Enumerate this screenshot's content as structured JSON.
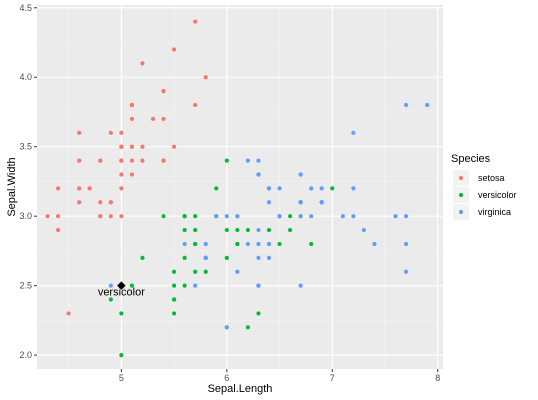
{
  "chart_data": {
    "type": "scatter",
    "xlabel": "Sepal.Length",
    "ylabel": "Sepal.Width",
    "xlim": [
      4.2,
      8.05
    ],
    "ylim": [
      1.9,
      4.52
    ],
    "x_ticks": [
      5,
      6,
      7,
      8
    ],
    "y_ticks": [
      2.0,
      2.5,
      3.0,
      3.5,
      4.0,
      4.5
    ],
    "y_tick_labels": [
      "2.0",
      "2.5",
      "3.0",
      "3.5",
      "4.0",
      "4.5"
    ],
    "grid": true,
    "background": "#ebebeb",
    "legend": {
      "title": "Species",
      "position": "right"
    },
    "series": [
      {
        "name": "setosa",
        "color": "#f8766d",
        "points": [
          [
            5.1,
            3.5
          ],
          [
            4.9,
            3.0
          ],
          [
            4.7,
            3.2
          ],
          [
            4.6,
            3.1
          ],
          [
            5.0,
            3.6
          ],
          [
            5.4,
            3.9
          ],
          [
            4.6,
            3.4
          ],
          [
            5.0,
            3.4
          ],
          [
            4.4,
            2.9
          ],
          [
            4.9,
            3.1
          ],
          [
            5.4,
            3.7
          ],
          [
            4.8,
            3.4
          ],
          [
            4.8,
            3.0
          ],
          [
            4.3,
            3.0
          ],
          [
            5.8,
            4.0
          ],
          [
            5.7,
            4.4
          ],
          [
            5.4,
            3.9
          ],
          [
            5.1,
            3.5
          ],
          [
            5.7,
            3.8
          ],
          [
            5.1,
            3.8
          ],
          [
            5.4,
            3.4
          ],
          [
            5.1,
            3.7
          ],
          [
            4.6,
            3.6
          ],
          [
            5.1,
            3.3
          ],
          [
            4.8,
            3.4
          ],
          [
            5.0,
            3.0
          ],
          [
            5.0,
            3.4
          ],
          [
            5.2,
            3.5
          ],
          [
            5.2,
            3.4
          ],
          [
            4.7,
            3.2
          ],
          [
            4.8,
            3.1
          ],
          [
            5.4,
            3.4
          ],
          [
            5.2,
            4.1
          ],
          [
            5.5,
            4.2
          ],
          [
            4.9,
            3.1
          ],
          [
            5.0,
            3.2
          ],
          [
            5.5,
            3.5
          ],
          [
            4.9,
            3.6
          ],
          [
            4.4,
            3.0
          ],
          [
            5.1,
            3.4
          ],
          [
            5.0,
            3.5
          ],
          [
            4.5,
            2.3
          ],
          [
            4.4,
            3.2
          ],
          [
            5.0,
            3.5
          ],
          [
            5.1,
            3.8
          ],
          [
            4.8,
            3.0
          ],
          [
            5.1,
            3.8
          ],
          [
            4.6,
            3.2
          ],
          [
            5.3,
            3.7
          ],
          [
            5.0,
            3.3
          ]
        ]
      },
      {
        "name": "versicolor",
        "color": "#00ba38",
        "points": [
          [
            7.0,
            3.2
          ],
          [
            6.4,
            3.2
          ],
          [
            6.9,
            3.1
          ],
          [
            5.5,
            2.3
          ],
          [
            6.5,
            2.8
          ],
          [
            5.7,
            2.8
          ],
          [
            6.3,
            3.3
          ],
          [
            4.9,
            2.4
          ],
          [
            6.6,
            2.9
          ],
          [
            5.2,
            2.7
          ],
          [
            5.0,
            2.0
          ],
          [
            5.9,
            3.0
          ],
          [
            6.0,
            2.2
          ],
          [
            6.1,
            2.9
          ],
          [
            5.6,
            2.9
          ],
          [
            6.7,
            3.1
          ],
          [
            5.6,
            3.0
          ],
          [
            5.8,
            2.7
          ],
          [
            6.2,
            2.2
          ],
          [
            5.6,
            2.5
          ],
          [
            5.9,
            3.2
          ],
          [
            6.1,
            2.8
          ],
          [
            6.3,
            2.5
          ],
          [
            6.1,
            2.8
          ],
          [
            6.4,
            2.9
          ],
          [
            6.6,
            3.0
          ],
          [
            6.8,
            2.8
          ],
          [
            6.7,
            3.0
          ],
          [
            6.0,
            2.9
          ],
          [
            5.7,
            2.6
          ],
          [
            5.5,
            2.4
          ],
          [
            5.5,
            2.4
          ],
          [
            5.8,
            2.7
          ],
          [
            6.0,
            2.7
          ],
          [
            5.4,
            3.0
          ],
          [
            6.0,
            3.4
          ],
          [
            6.7,
            3.1
          ],
          [
            6.3,
            2.3
          ],
          [
            5.6,
            3.0
          ],
          [
            5.5,
            2.5
          ],
          [
            5.5,
            2.6
          ],
          [
            6.1,
            3.0
          ],
          [
            5.8,
            2.6
          ],
          [
            5.0,
            2.3
          ],
          [
            5.6,
            2.7
          ],
          [
            5.7,
            3.0
          ],
          [
            5.7,
            2.9
          ],
          [
            6.2,
            2.9
          ],
          [
            5.1,
            2.5
          ],
          [
            5.7,
            2.8
          ]
        ]
      },
      {
        "name": "virginica",
        "color": "#619cff",
        "points": [
          [
            6.3,
            3.3
          ],
          [
            5.8,
            2.7
          ],
          [
            7.1,
            3.0
          ],
          [
            6.3,
            2.9
          ],
          [
            6.5,
            3.0
          ],
          [
            7.6,
            3.0
          ],
          [
            4.9,
            2.5
          ],
          [
            7.3,
            2.9
          ],
          [
            6.7,
            2.5
          ],
          [
            7.2,
            3.6
          ],
          [
            6.5,
            3.2
          ],
          [
            6.4,
            2.7
          ],
          [
            6.8,
            3.0
          ],
          [
            5.7,
            2.5
          ],
          [
            5.8,
            2.8
          ],
          [
            6.4,
            3.2
          ],
          [
            6.5,
            3.0
          ],
          [
            7.7,
            3.8
          ],
          [
            7.7,
            2.6
          ],
          [
            6.0,
            2.2
          ],
          [
            6.9,
            3.2
          ],
          [
            5.6,
            2.8
          ],
          [
            7.7,
            2.8
          ],
          [
            6.3,
            2.7
          ],
          [
            6.7,
            3.3
          ],
          [
            7.2,
            3.2
          ],
          [
            6.2,
            2.8
          ],
          [
            6.1,
            3.0
          ],
          [
            6.4,
            2.8
          ],
          [
            7.2,
            3.0
          ],
          [
            7.4,
            2.8
          ],
          [
            7.9,
            3.8
          ],
          [
            6.4,
            2.8
          ],
          [
            6.3,
            2.8
          ],
          [
            6.1,
            2.6
          ],
          [
            7.7,
            3.0
          ],
          [
            6.3,
            3.4
          ],
          [
            6.4,
            3.1
          ],
          [
            6.0,
            3.0
          ],
          [
            6.9,
            3.1
          ],
          [
            6.7,
            3.1
          ],
          [
            6.9,
            3.1
          ],
          [
            5.8,
            2.7
          ],
          [
            6.8,
            3.2
          ],
          [
            6.7,
            3.3
          ],
          [
            6.7,
            3.0
          ],
          [
            6.3,
            2.5
          ],
          [
            6.5,
            3.0
          ],
          [
            6.2,
            3.4
          ],
          [
            5.9,
            3.0
          ]
        ]
      }
    ],
    "annotation": {
      "label": "versicolor",
      "x": 5.0,
      "y": 2.5,
      "marker": "diamond",
      "color": "#000000"
    }
  }
}
